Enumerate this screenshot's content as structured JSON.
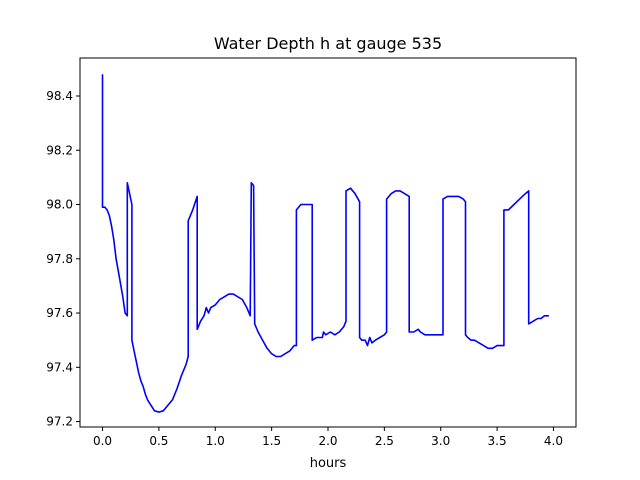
{
  "chart_data": {
    "type": "line",
    "title": "Water Depth h at gauge 535",
    "xlabel": "hours",
    "ylabel": "",
    "xlim": [
      -0.2,
      4.2
    ],
    "ylim": [
      97.18,
      98.54
    ],
    "xticks": [
      0.0,
      0.5,
      1.0,
      1.5,
      2.0,
      2.5,
      3.0,
      3.5,
      4.0
    ],
    "xtick_labels": [
      "0.0",
      "0.5",
      "1.0",
      "1.5",
      "2.0",
      "2.5",
      "3.0",
      "3.5",
      "4.0"
    ],
    "yticks": [
      97.2,
      97.4,
      97.6,
      97.8,
      98.0,
      98.2,
      98.4
    ],
    "ytick_labels": [
      "97.2",
      "97.4",
      "97.6",
      "97.8",
      "98.0",
      "98.2",
      "98.4"
    ],
    "grid": false,
    "legend": "none",
    "series": [
      {
        "color": "#0000ff",
        "points": [
          [
            0.0,
            98.48
          ],
          [
            0.0,
            97.99
          ],
          [
            0.02,
            97.99
          ],
          [
            0.04,
            97.98
          ],
          [
            0.06,
            97.96
          ],
          [
            0.08,
            97.92
          ],
          [
            0.1,
            97.87
          ],
          [
            0.12,
            97.8
          ],
          [
            0.15,
            97.73
          ],
          [
            0.18,
            97.66
          ],
          [
            0.2,
            97.6
          ],
          [
            0.22,
            97.59
          ],
          [
            0.22,
            98.08
          ],
          [
            0.26,
            98.0
          ],
          [
            0.26,
            97.5
          ],
          [
            0.28,
            97.46
          ],
          [
            0.3,
            97.42
          ],
          [
            0.32,
            97.38
          ],
          [
            0.34,
            97.35
          ],
          [
            0.36,
            97.33
          ],
          [
            0.38,
            97.3
          ],
          [
            0.4,
            97.28
          ],
          [
            0.43,
            97.26
          ],
          [
            0.46,
            97.24
          ],
          [
            0.5,
            97.235
          ],
          [
            0.54,
            97.24
          ],
          [
            0.58,
            97.26
          ],
          [
            0.62,
            97.28
          ],
          [
            0.66,
            97.32
          ],
          [
            0.7,
            97.37
          ],
          [
            0.74,
            97.41
          ],
          [
            0.76,
            97.44
          ],
          [
            0.76,
            97.94
          ],
          [
            0.8,
            97.98
          ],
          [
            0.84,
            98.03
          ],
          [
            0.84,
            97.54
          ],
          [
            0.87,
            97.57
          ],
          [
            0.9,
            97.59
          ],
          [
            0.92,
            97.62
          ],
          [
            0.94,
            97.6
          ],
          [
            0.96,
            97.62
          ],
          [
            1.0,
            97.63
          ],
          [
            1.04,
            97.65
          ],
          [
            1.08,
            97.66
          ],
          [
            1.12,
            97.67
          ],
          [
            1.16,
            97.67
          ],
          [
            1.2,
            97.66
          ],
          [
            1.24,
            97.65
          ],
          [
            1.28,
            97.62
          ],
          [
            1.31,
            97.59
          ],
          [
            1.32,
            98.08
          ],
          [
            1.34,
            98.07
          ],
          [
            1.35,
            97.56
          ],
          [
            1.38,
            97.53
          ],
          [
            1.42,
            97.5
          ],
          [
            1.46,
            97.47
          ],
          [
            1.5,
            97.45
          ],
          [
            1.54,
            97.44
          ],
          [
            1.58,
            97.44
          ],
          [
            1.62,
            97.45
          ],
          [
            1.66,
            97.46
          ],
          [
            1.7,
            97.48
          ],
          [
            1.72,
            97.48
          ],
          [
            1.72,
            97.98
          ],
          [
            1.76,
            98.0
          ],
          [
            1.86,
            98.0
          ],
          [
            1.86,
            97.5
          ],
          [
            1.9,
            97.51
          ],
          [
            1.92,
            97.51
          ],
          [
            1.95,
            97.51
          ],
          [
            1.96,
            97.53
          ],
          [
            1.98,
            97.52
          ],
          [
            2.02,
            97.53
          ],
          [
            2.06,
            97.52
          ],
          [
            2.1,
            97.53
          ],
          [
            2.14,
            97.55
          ],
          [
            2.16,
            97.57
          ],
          [
            2.16,
            98.05
          ],
          [
            2.2,
            98.06
          ],
          [
            2.24,
            98.04
          ],
          [
            2.28,
            98.01
          ],
          [
            2.28,
            97.51
          ],
          [
            2.3,
            97.5
          ],
          [
            2.33,
            97.5
          ],
          [
            2.35,
            97.48
          ],
          [
            2.37,
            97.51
          ],
          [
            2.39,
            97.49
          ],
          [
            2.42,
            97.5
          ],
          [
            2.46,
            97.51
          ],
          [
            2.5,
            97.52
          ],
          [
            2.52,
            97.53
          ],
          [
            2.52,
            98.02
          ],
          [
            2.56,
            98.04
          ],
          [
            2.6,
            98.05
          ],
          [
            2.64,
            98.05
          ],
          [
            2.68,
            98.04
          ],
          [
            2.72,
            98.03
          ],
          [
            2.72,
            97.53
          ],
          [
            2.76,
            97.53
          ],
          [
            2.8,
            97.54
          ],
          [
            2.82,
            97.53
          ],
          [
            2.86,
            97.52
          ],
          [
            2.9,
            97.52
          ],
          [
            2.95,
            97.52
          ],
          [
            2.98,
            97.52
          ],
          [
            3.0,
            97.52
          ],
          [
            3.02,
            97.52
          ],
          [
            3.02,
            98.02
          ],
          [
            3.06,
            98.03
          ],
          [
            3.1,
            98.03
          ],
          [
            3.16,
            98.03
          ],
          [
            3.2,
            98.02
          ],
          [
            3.22,
            98.01
          ],
          [
            3.22,
            97.52
          ],
          [
            3.24,
            97.51
          ],
          [
            3.27,
            97.5
          ],
          [
            3.3,
            97.5
          ],
          [
            3.34,
            97.49
          ],
          [
            3.38,
            97.48
          ],
          [
            3.42,
            97.47
          ],
          [
            3.46,
            97.47
          ],
          [
            3.5,
            97.48
          ],
          [
            3.56,
            97.48
          ],
          [
            3.56,
            97.98
          ],
          [
            3.6,
            97.98
          ],
          [
            3.65,
            98.0
          ],
          [
            3.7,
            98.02
          ],
          [
            3.75,
            98.04
          ],
          [
            3.78,
            98.05
          ],
          [
            3.78,
            97.56
          ],
          [
            3.82,
            97.57
          ],
          [
            3.86,
            97.58
          ],
          [
            3.89,
            97.58
          ],
          [
            3.92,
            97.59
          ],
          [
            3.96,
            97.59
          ]
        ]
      }
    ]
  }
}
